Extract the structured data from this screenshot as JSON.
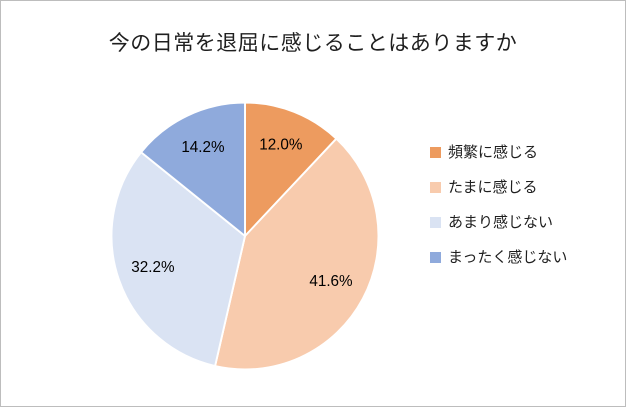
{
  "chart_data": {
    "type": "pie",
    "title": "今の日常を退屈に感じることはありますか",
    "categories": [
      "頻繁に感じる",
      "たまに感じる",
      "あまり感じない",
      "まったく感じない"
    ],
    "values": [
      12.0,
      41.6,
      32.2,
      14.2
    ],
    "labels": [
      "12.0%",
      "41.6%",
      "32.2%",
      "14.2%"
    ],
    "colors": [
      "#ED9B5F",
      "#F8CBAD",
      "#DAE3F3",
      "#8FAADC"
    ],
    "start_angle_deg": -90,
    "direction": "clockwise",
    "legend_position": "right",
    "label_color": "#000000",
    "slice_border_color": "#FFFFFF"
  }
}
